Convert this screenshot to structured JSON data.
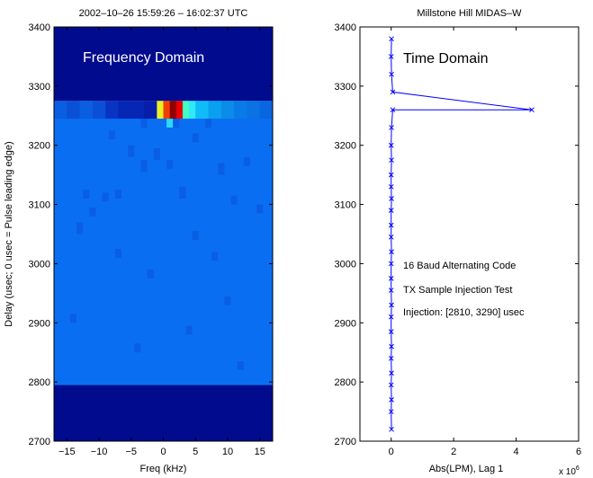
{
  "chart_data": [
    {
      "type": "heatmap",
      "title": "2002–10–26  15:59:26 – 16:02:37 UTC",
      "annotation": "Frequency Domain",
      "xlabel": "Freq (kHz)",
      "ylabel": "Delay (usec; 0 usec = Pulse leading edge)",
      "xlim": [
        -17,
        17
      ],
      "ylim": [
        2700,
        3400
      ],
      "x_ticks": [
        "−15",
        "−10",
        "−5",
        "0",
        "5",
        "10",
        "15"
      ],
      "x_tick_values": [
        -15,
        -10,
        -5,
        0,
        5,
        10,
        15
      ],
      "y_ticks": [
        "2700",
        "2800",
        "2900",
        "3000",
        "3100",
        "3200",
        "3300",
        "3400"
      ],
      "y_tick_values": [
        2700,
        2800,
        2900,
        3000,
        3100,
        3200,
        3300,
        3400
      ],
      "background_bands": [
        {
          "y0": 2700,
          "y1": 2795,
          "color": "#000b8e"
        },
        {
          "y0": 2795,
          "y1": 3275,
          "color": "#0a6ef2"
        },
        {
          "y0": 3275,
          "y1": 3400,
          "color": "#000b8e"
        }
      ],
      "peak_row": {
        "y0": 3245,
        "y1": 3275,
        "cells": [
          {
            "x0": -17,
            "x1": -15,
            "color": "#0a5ee0"
          },
          {
            "x0": -15,
            "x1": -13,
            "color": "#0a50d6"
          },
          {
            "x0": -13,
            "x1": -11,
            "color": "#0a5ee0"
          },
          {
            "x0": -11,
            "x1": -9,
            "color": "#0a50d6"
          },
          {
            "x0": -9,
            "x1": -7,
            "color": "#0834c4"
          },
          {
            "x0": -7,
            "x1": -5,
            "color": "#0626b4"
          },
          {
            "x0": -5,
            "x1": -3,
            "color": "#0626b4"
          },
          {
            "x0": -3,
            "x1": -1,
            "color": "#061ea8"
          },
          {
            "x0": -1,
            "x1": 0,
            "color": "#e8f026"
          },
          {
            "x0": 0,
            "x1": 1,
            "color": "#f04000"
          },
          {
            "x0": 1,
            "x1": 2,
            "color": "#900000"
          },
          {
            "x0": 2,
            "x1": 3,
            "color": "#e80000"
          },
          {
            "x0": 3,
            "x1": 4,
            "color": "#40ffc0"
          },
          {
            "x0": 4,
            "x1": 5,
            "color": "#30e8f8"
          },
          {
            "x0": 5,
            "x1": 7,
            "color": "#10bcf8"
          },
          {
            "x0": 7,
            "x1": 9,
            "color": "#0aa0f0"
          },
          {
            "x0": 9,
            "x1": 11,
            "color": "#0a8ce8"
          },
          {
            "x0": 11,
            "x1": 13,
            "color": "#0a7ae6"
          },
          {
            "x0": 13,
            "x1": 15,
            "color": "#0a72e2"
          },
          {
            "x0": 15,
            "x1": 17,
            "color": "#0a66e0"
          }
        ]
      },
      "speckle_cells": [
        {
          "x": 1,
          "y0": 3230,
          "y1": 3245,
          "color": "#2ad8f8"
        },
        {
          "x": 2,
          "y0": 3230,
          "y1": 3245,
          "color": "#0a5ee4"
        },
        {
          "x": -3,
          "y0": 3230,
          "y1": 3245,
          "color": "#0a5ee4"
        },
        {
          "x": 7,
          "y0": 3230,
          "y1": 3245,
          "color": "#0a5ee4"
        },
        {
          "x": -8,
          "y0": 3210,
          "y1": 3225,
          "color": "#0a5ee4"
        },
        {
          "x": 5,
          "y0": 3205,
          "y1": 3220,
          "color": "#0a5ee4"
        },
        {
          "x": -5,
          "y0": 3180,
          "y1": 3200,
          "color": "#0a5ee4"
        },
        {
          "x": -1,
          "y0": 3175,
          "y1": 3195,
          "color": "#0a5ee4"
        },
        {
          "x": -3,
          "y0": 3155,
          "y1": 3175,
          "color": "#0a5ee4"
        },
        {
          "x": 1,
          "y0": 3160,
          "y1": 3175,
          "color": "#0a5ee4"
        },
        {
          "x": 9,
          "y0": 3150,
          "y1": 3170,
          "color": "#0a5ee4"
        },
        {
          "x": 13,
          "y0": 3165,
          "y1": 3180,
          "color": "#0a5ee4"
        },
        {
          "x": -12,
          "y0": 3110,
          "y1": 3125,
          "color": "#0a5ee4"
        },
        {
          "x": -9,
          "y0": 3105,
          "y1": 3120,
          "color": "#0a5ee4"
        },
        {
          "x": -7,
          "y0": 3110,
          "y1": 3125,
          "color": "#0a5ee4"
        },
        {
          "x": 3,
          "y0": 3110,
          "y1": 3130,
          "color": "#0a5ee4"
        },
        {
          "x": 11,
          "y0": 3100,
          "y1": 3115,
          "color": "#0a5ee4"
        },
        {
          "x": -11,
          "y0": 3080,
          "y1": 3095,
          "color": "#0a5ee4"
        },
        {
          "x": 15,
          "y0": 3085,
          "y1": 3100,
          "color": "#0a5ee4"
        },
        {
          "x": -13,
          "y0": 3050,
          "y1": 3070,
          "color": "#0a5ee4"
        },
        {
          "x": 5,
          "y0": 3040,
          "y1": 3055,
          "color": "#0a5ee4"
        },
        {
          "x": -7,
          "y0": 3010,
          "y1": 3025,
          "color": "#0a5ee4"
        },
        {
          "x": 8,
          "y0": 3005,
          "y1": 3020,
          "color": "#0a5ee4"
        },
        {
          "x": -2,
          "y0": 2975,
          "y1": 2990,
          "color": "#0a5ee4"
        },
        {
          "x": 10,
          "y0": 2930,
          "y1": 2945,
          "color": "#0a5ee4"
        },
        {
          "x": -14,
          "y0": 2900,
          "y1": 2915,
          "color": "#0a5ee4"
        },
        {
          "x": 4,
          "y0": 2880,
          "y1": 2895,
          "color": "#0a5ee4"
        },
        {
          "x": -4,
          "y0": 2850,
          "y1": 2865,
          "color": "#0a5ee4"
        },
        {
          "x": 12,
          "y0": 2820,
          "y1": 2835,
          "color": "#0a5ee4"
        }
      ]
    },
    {
      "type": "line",
      "title": "Millstone Hill MIDAS–W",
      "annotation": "Time Domain",
      "xlabel": "Abs(LPM), Lag 1",
      "x_multiplier_label": "x 10",
      "x_multiplier_exponent": "6",
      "xlim": [
        -1,
        6
      ],
      "ylim": [
        2700,
        3400
      ],
      "x_ticks": [
        "0",
        "2",
        "4",
        "6"
      ],
      "x_tick_values": [
        0,
        2,
        4,
        6
      ],
      "y_ticks": [
        "2700",
        "2800",
        "2900",
        "3000",
        "3100",
        "3200",
        "3300",
        "3400"
      ],
      "y_tick_values": [
        2700,
        2800,
        2900,
        3000,
        3100,
        3200,
        3300,
        3400
      ],
      "marker": "x",
      "line_color": "#0000ff",
      "notes": [
        "16 Baud Alternating Code",
        "TX Sample Injection Test",
        "Injection: [2810, 3290] usec"
      ],
      "x": [
        0.01,
        0.0,
        0.01,
        0.0,
        0.01,
        0.0,
        0.01,
        0.0,
        0.0,
        0.01,
        0.0,
        0.0,
        0.0,
        0.01,
        0.0,
        0.0,
        0.0,
        0.01,
        0.0,
        0.0,
        0.01,
        0.0,
        0.01,
        0.05,
        4.5,
        0.05,
        0.01,
        0.0,
        0.01
      ],
      "y": [
        2720,
        2750,
        2770,
        2795,
        2815,
        2840,
        2860,
        2885,
        2910,
        2930,
        2955,
        2975,
        3000,
        3020,
        3045,
        3065,
        3090,
        3110,
        3130,
        3150,
        3175,
        3200,
        3230,
        3260,
        3260,
        3290,
        3320,
        3350,
        3380
      ]
    }
  ]
}
